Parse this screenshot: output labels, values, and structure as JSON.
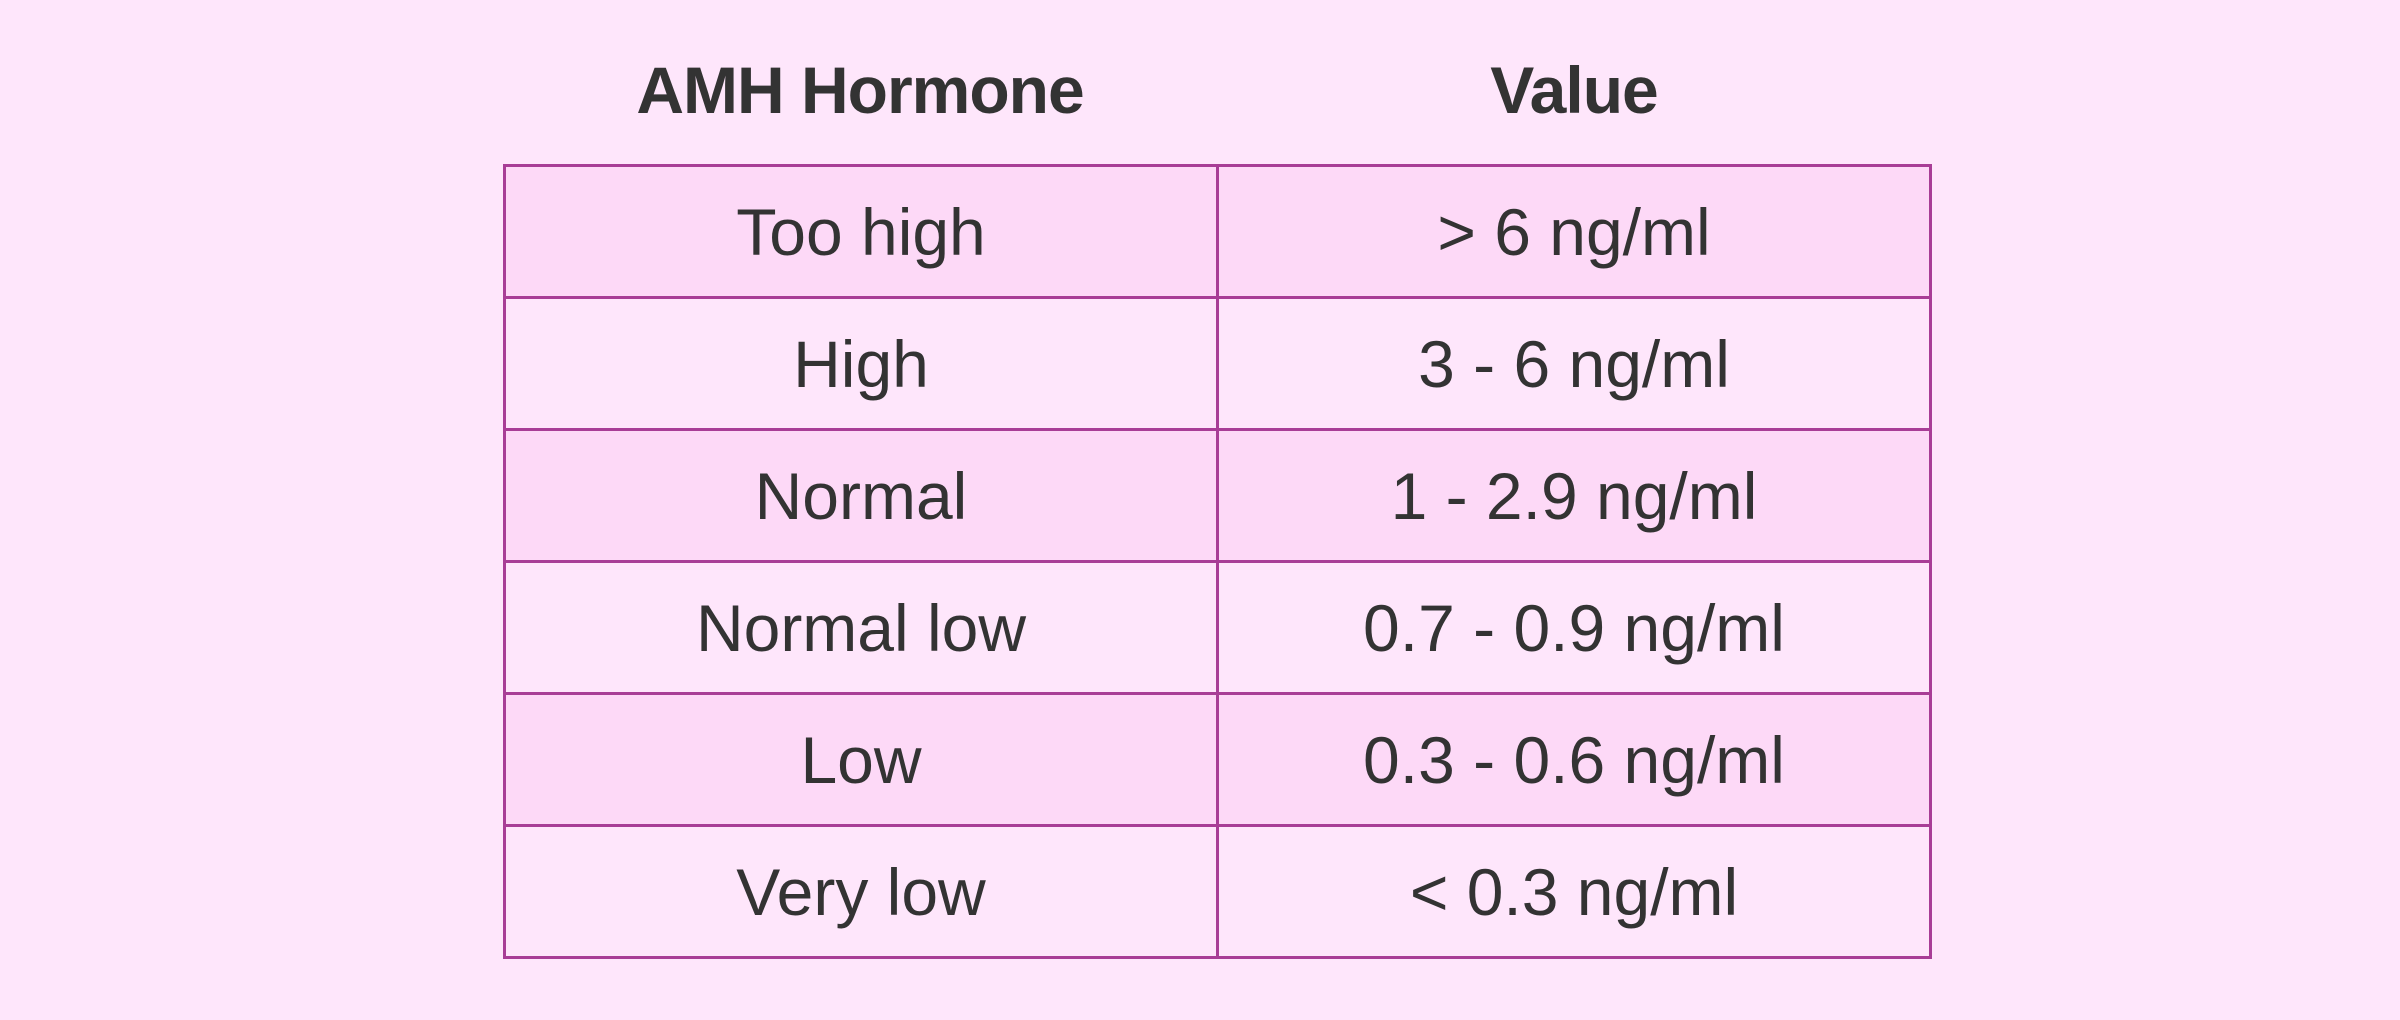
{
  "table": {
    "header": [
      "AMH Hormone",
      "Value"
    ],
    "rows": [
      [
        "Too high",
        "> 6 ng/ml"
      ],
      [
        "High",
        "3 - 6 ng/ml"
      ],
      [
        "Normal",
        "1 - 2.9 ng/ml"
      ],
      [
        "Normal low",
        "0.7 - 0.9 ng/ml"
      ],
      [
        "Low",
        "0.3 - 0.6 ng/ml"
      ],
      [
        "Very low",
        "< 0.3 ng/ml"
      ]
    ]
  }
}
